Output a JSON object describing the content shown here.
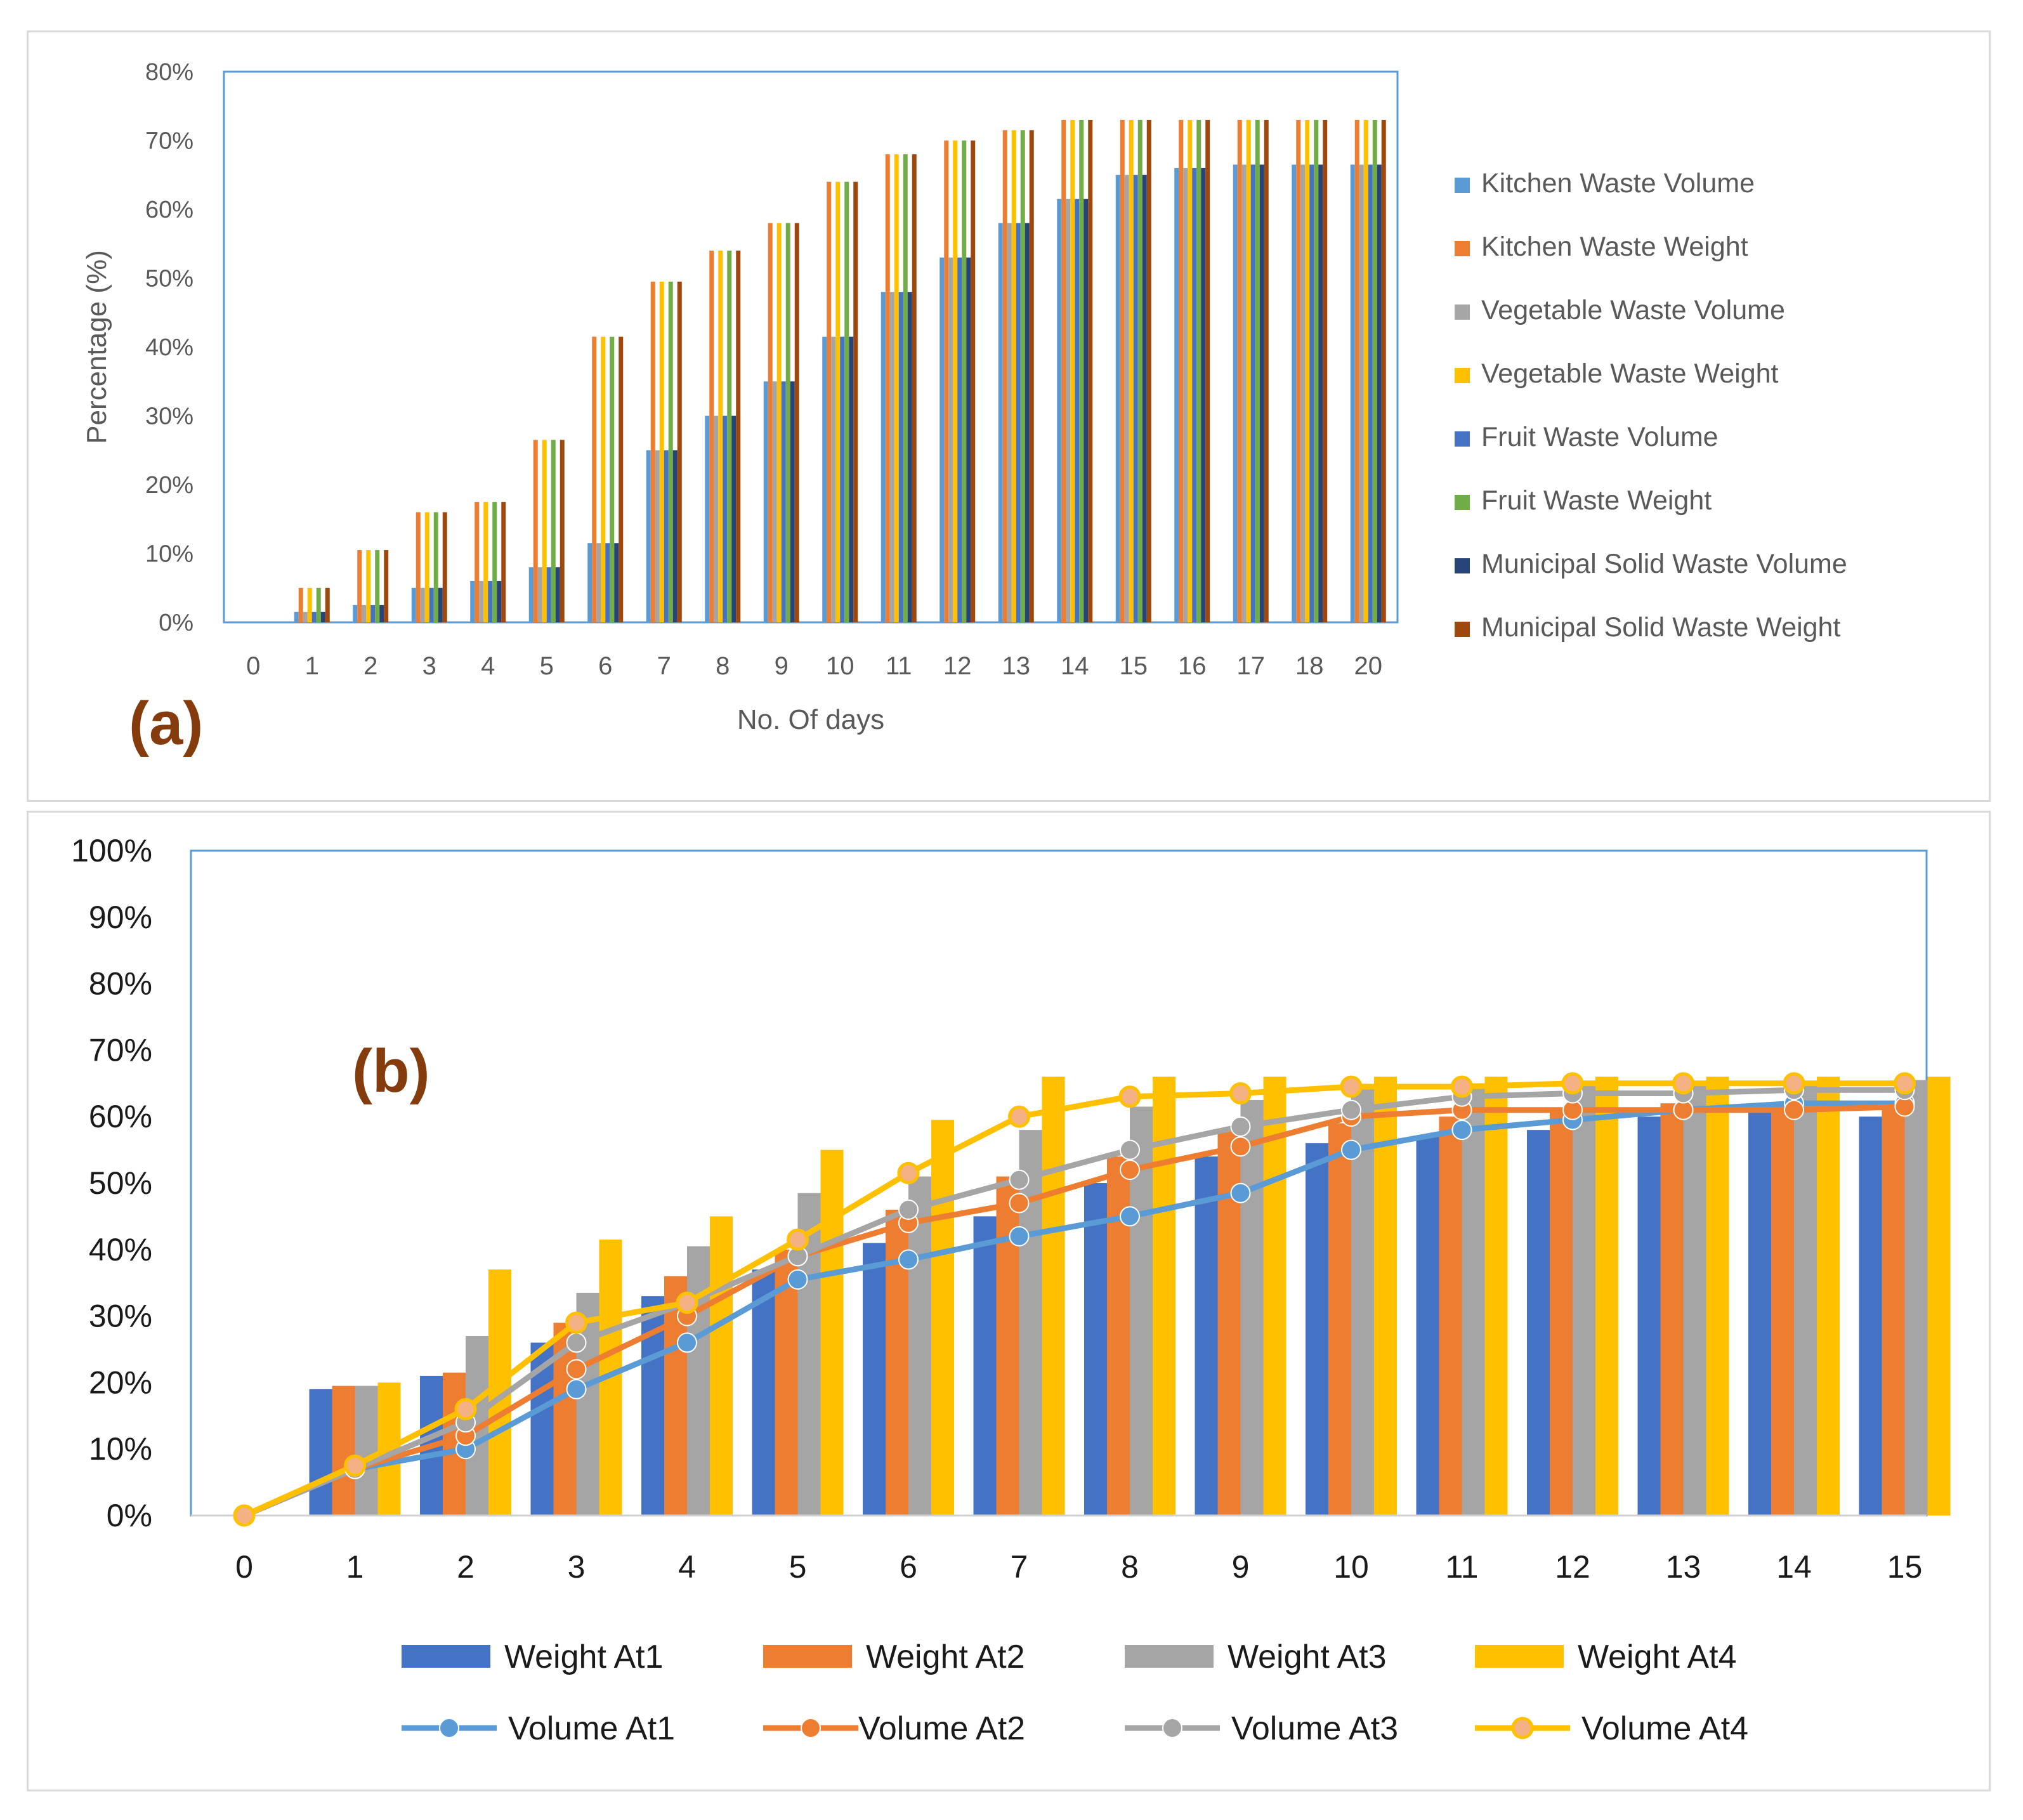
{
  "chart_data": [
    {
      "type": "bar",
      "panel_label": "(a)",
      "title": "",
      "xlabel": "No. Of days",
      "ylabel": "Percentage (%)",
      "ylim": [
        0,
        80
      ],
      "y_ticks": [
        "0%",
        "10%",
        "20%",
        "30%",
        "40%",
        "50%",
        "60%",
        "70%",
        "80%"
      ],
      "categories": [
        "0",
        "1",
        "2",
        "3",
        "4",
        "5",
        "6",
        "7",
        "8",
        "9",
        "10",
        "11",
        "12",
        "13",
        "14",
        "15",
        "16",
        "17",
        "18",
        "20"
      ],
      "legend_position": "right",
      "series": [
        {
          "name": "Kitchen Waste Volume",
          "color": "#5b9bd5",
          "values": [
            0,
            1.5,
            2.5,
            5,
            6,
            8,
            11.5,
            25,
            30,
            35,
            41.5,
            48,
            53,
            58,
            61.5,
            65,
            66,
            66.5,
            66.5,
            66.5
          ]
        },
        {
          "name": "Kitchen Waste Weight",
          "color": "#ed7d31",
          "values": [
            0,
            5,
            10.5,
            16,
            17.5,
            26.5,
            41.5,
            49.5,
            54,
            58,
            64,
            68,
            70,
            71.5,
            73,
            73,
            73,
            73,
            73,
            73
          ]
        },
        {
          "name": "Vegetable Waste Volume",
          "color": "#a5a5a5",
          "values": [
            0,
            1.5,
            2.5,
            5,
            6,
            8,
            11.5,
            25,
            30,
            35,
            41.5,
            48,
            53,
            58,
            61.5,
            65,
            66,
            66.5,
            66.5,
            66.5
          ]
        },
        {
          "name": "Vegetable Waste Weight",
          "color": "#ffc000",
          "values": [
            0,
            5,
            10.5,
            16,
            17.5,
            26.5,
            41.5,
            49.5,
            54,
            58,
            64,
            68,
            70,
            71.5,
            73,
            73,
            73,
            73,
            73,
            73
          ]
        },
        {
          "name": "Fruit Waste Volume",
          "color": "#4472c4",
          "values": [
            0,
            1.5,
            2.5,
            5,
            6,
            8,
            11.5,
            25,
            30,
            35,
            41.5,
            48,
            53,
            58,
            61.5,
            65,
            66,
            66.5,
            66.5,
            66.5
          ]
        },
        {
          "name": "Fruit Waste Weight",
          "color": "#70ad47",
          "values": [
            0,
            5,
            10.5,
            16,
            17.5,
            26.5,
            41.5,
            49.5,
            54,
            58,
            64,
            68,
            70,
            71.5,
            73,
            73,
            73,
            73,
            73,
            73
          ]
        },
        {
          "name": "Municipal Solid Waste Volume",
          "color": "#264478",
          "values": [
            0,
            1.5,
            2.5,
            5,
            6,
            8,
            11.5,
            25,
            30,
            35,
            41.5,
            48,
            53,
            58,
            61.5,
            65,
            66,
            66.5,
            66.5,
            66.5
          ]
        },
        {
          "name": "Municipal Solid Waste Weight",
          "color": "#9e480e",
          "values": [
            0,
            5,
            10.5,
            16,
            17.5,
            26.5,
            41.5,
            49.5,
            54,
            58,
            64,
            68,
            70,
            71.5,
            73,
            73,
            73,
            73,
            73,
            73
          ]
        }
      ]
    },
    {
      "type": "bar",
      "panel_label": "(b)",
      "title": "",
      "xlabel": "",
      "ylabel": "",
      "ylim": [
        0,
        100
      ],
      "y_ticks": [
        "0%",
        "10%",
        "20%",
        "30%",
        "40%",
        "50%",
        "60%",
        "70%",
        "80%",
        "90%",
        "100%"
      ],
      "categories": [
        "0",
        "1",
        "2",
        "3",
        "4",
        "5",
        "6",
        "7",
        "8",
        "9",
        "10",
        "11",
        "12",
        "13",
        "14",
        "15"
      ],
      "legend_position": "bottom",
      "bar_series": [
        {
          "name": "Weight At1",
          "color": "#4472c4",
          "values": [
            0,
            19,
            21,
            26,
            33,
            37,
            41,
            45,
            50,
            54,
            56,
            57,
            58,
            60,
            61,
            60
          ]
        },
        {
          "name": "Weight At2",
          "color": "#ed7d31",
          "values": [
            0,
            19.5,
            21.5,
            29,
            36,
            40,
            46,
            51,
            54,
            58,
            59,
            60,
            61,
            62,
            62,
            62
          ]
        },
        {
          "name": "Weight  At3",
          "color": "#a5a5a5",
          "values": [
            0,
            19.5,
            27,
            33.5,
            40.5,
            48.5,
            51,
            58,
            61.5,
            62.5,
            64.5,
            65,
            65,
            65,
            65,
            65.5
          ]
        },
        {
          "name": "Weight At4",
          "color": "#ffc000",
          "values": [
            0,
            20,
            37,
            41.5,
            45,
            55,
            59.5,
            66,
            66,
            66,
            66,
            66,
            66,
            66,
            66,
            66
          ]
        }
      ],
      "line_series": [
        {
          "name": "Volume  At1",
          "color": "#5b9bd5",
          "values": [
            0,
            7,
            10,
            19,
            26,
            35.5,
            38.5,
            42,
            45,
            48.5,
            55,
            58,
            59.5,
            61,
            62,
            62
          ]
        },
        {
          "name": "Volume At2",
          "color": "#ed7d31",
          "values": [
            0,
            7,
            12,
            22,
            30,
            39,
            44,
            47,
            52,
            55.5,
            60,
            61,
            61,
            61,
            61,
            61.5
          ]
        },
        {
          "name": "Volume At3",
          "color": "#a5a5a5",
          "values": [
            0,
            7,
            14,
            26,
            32,
            39,
            46,
            50.5,
            55,
            58.5,
            61,
            63,
            63.5,
            63.5,
            64,
            64
          ]
        },
        {
          "name": "Volume At4",
          "color": "#ffc000",
          "values": [
            0,
            7.5,
            16,
            29,
            32,
            41.5,
            51.5,
            60,
            63,
            63.5,
            64.5,
            64.5,
            65,
            65,
            65,
            65
          ]
        }
      ]
    }
  ]
}
